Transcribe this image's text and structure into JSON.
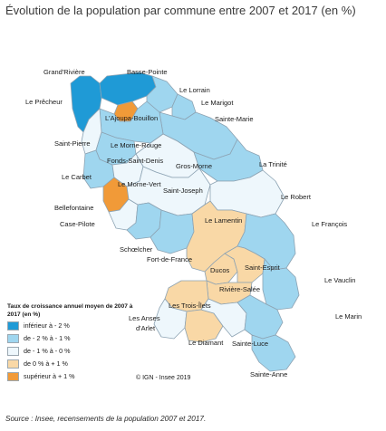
{
  "title": "Évolution de la population par commune entre 2007 et 2017 (en %)",
  "legend": {
    "title": "Taux de croissance annuel moyen de 2007 à 2017 (en %)",
    "classes": [
      {
        "label": "inférieur à - 2 %",
        "color": "#1f9ad6"
      },
      {
        "label": "de - 2 % à - 1 %",
        "color": "#9fd6ef"
      },
      {
        "label": "de - 1 % à - 0 %",
        "color": "#eef7fc"
      },
      {
        "label": "de 0 % à + 1 %",
        "color": "#f9d8a6"
      },
      {
        "label": "supérieur à + 1 %",
        "color": "#f19a38"
      }
    ]
  },
  "copyright": "© IGN - Insee 2019",
  "source": "Source : Insee, recensements de la population 2007 et 2017.",
  "communes": {
    "grand_riviere": "Grand'Rivière",
    "basse_pointe": "Basse-Pointe",
    "le_precheur": "Le Prêcheur",
    "le_lorrain": "Le Lorrain",
    "le_marigot": "Le Marigot",
    "lajoupa": "L'Ajoupa-Bouillon",
    "sainte_marie": "Sainte-Marie",
    "saint_pierre": "Saint-Pierre",
    "morne_rouge": "Le Morne-Rouge",
    "fonds_saint_denis": "Fonds-Saint-Denis",
    "la_trinite": "La Trinité",
    "gros_morne": "Gros-Morne",
    "le_carbet": "Le Carbet",
    "morne_vert": "Le Morne-Vert",
    "saint_joseph": "Saint-Joseph",
    "le_robert": "Le Robert",
    "bellefontaine": "Bellefontaine",
    "case_pilote": "Case-Pilote",
    "le_lamentin": "Le Lamentin",
    "le_francois": "Le François",
    "schoelcher": "Schœlcher",
    "fort_de_france": "Fort-de-France",
    "ducos": "Ducos",
    "saint_esprit": "Saint-Esprit",
    "le_vauclin": "Le Vauclin",
    "riviere_salee": "Rivière-Salée",
    "les_trois_ilets": "Les Trois-Îlets",
    "les_anses_line1": "Les Anses",
    "les_anses_line2": "d'Arlet",
    "le_marin": "Le Marin",
    "le_diamant": "Le Diamant",
    "sainte_luce": "Sainte-Luce",
    "sainte_anne": "Sainte-Anne"
  }
}
